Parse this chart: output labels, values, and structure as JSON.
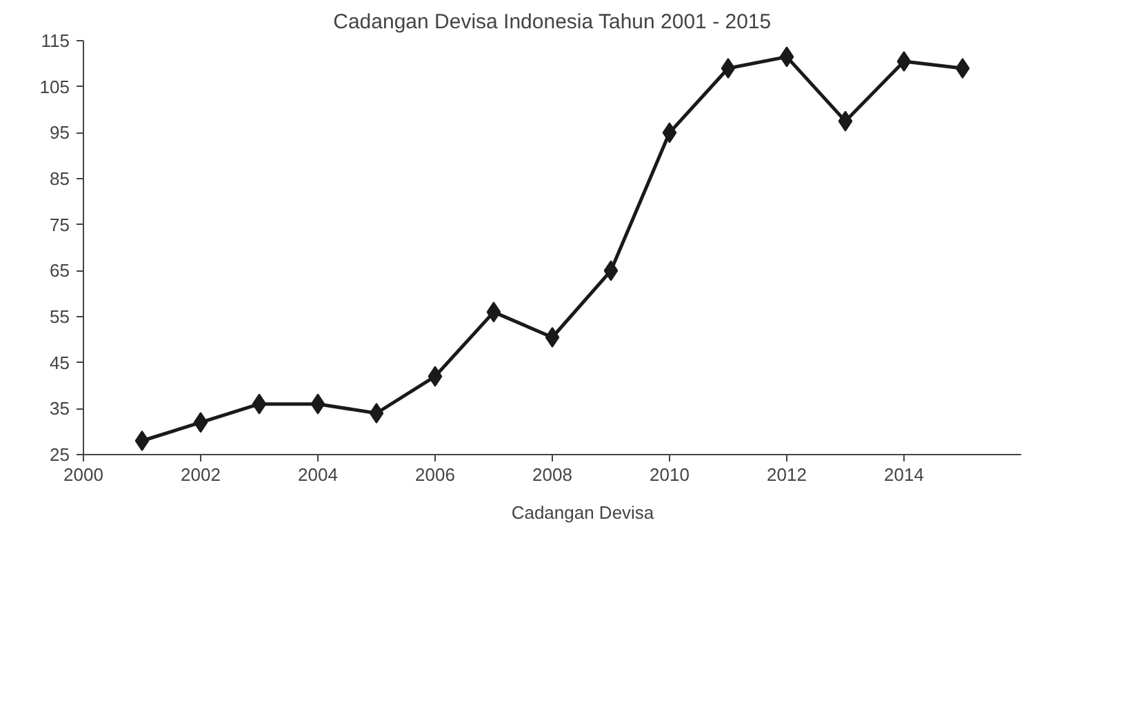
{
  "chart_data": {
    "type": "line",
    "title": "Cadangan Devisa Indonesia Tahun 2001 - 2015",
    "x": [
      2001,
      2002,
      2003,
      2004,
      2005,
      2006,
      2007,
      2008,
      2009,
      2010,
      2011,
      2012,
      2013,
      2014,
      2015
    ],
    "series": [
      {
        "name": "Cadangan Devisa",
        "color": "#1a1a1a",
        "values": [
          28,
          32,
          36,
          36,
          34,
          42,
          56,
          50.5,
          65,
          95,
          109,
          111.5,
          97.5,
          110.5,
          109
        ]
      }
    ],
    "xlim": [
      2000,
      2016
    ],
    "xticks": [
      2000,
      2002,
      2004,
      2006,
      2008,
      2010,
      2012,
      2014
    ],
    "ylim": [
      25,
      115
    ],
    "yticks": [
      25,
      35,
      45,
      55,
      65,
      75,
      85,
      95,
      105,
      115
    ],
    "grid": false,
    "legend": "bottom",
    "marker": "diamond",
    "line_style": "solid"
  }
}
